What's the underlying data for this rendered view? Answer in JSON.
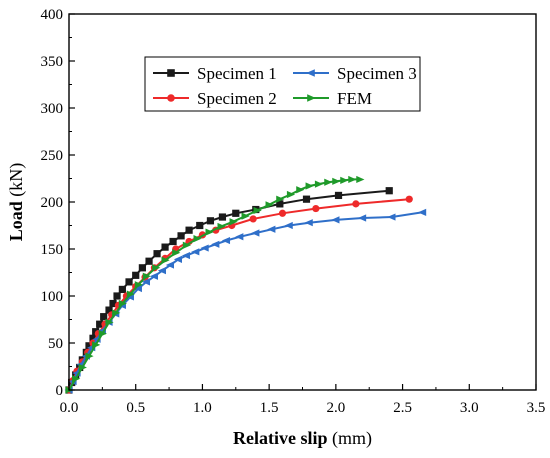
{
  "chart_data": {
    "type": "line",
    "xlabel_bold": "Relative slip",
    "xlabel_unit": " (mm)",
    "ylabel_bold": "Load",
    "ylabel_unit": " (kN)",
    "xlim": [
      0,
      3.5
    ],
    "ylim": [
      0,
      400
    ],
    "xticks": [
      "0.0",
      "0.5",
      "1.0",
      "1.5",
      "2.0",
      "2.5",
      "3.0",
      "3.5"
    ],
    "yticks": [
      "0",
      "50",
      "100",
      "150",
      "200",
      "250",
      "300",
      "350",
      "400"
    ],
    "grid": false,
    "legend_position": "top-center",
    "series": [
      {
        "name": "Specimen 1",
        "color": "#1a1a1a",
        "marker": "square",
        "points": [
          [
            0.0,
            0
          ],
          [
            0.02,
            8
          ],
          [
            0.05,
            16
          ],
          [
            0.08,
            24
          ],
          [
            0.1,
            32
          ],
          [
            0.13,
            40
          ],
          [
            0.15,
            47
          ],
          [
            0.18,
            55
          ],
          [
            0.2,
            62
          ],
          [
            0.23,
            70
          ],
          [
            0.26,
            78
          ],
          [
            0.3,
            85
          ],
          [
            0.33,
            92
          ],
          [
            0.36,
            100
          ],
          [
            0.4,
            107
          ],
          [
            0.45,
            115
          ],
          [
            0.5,
            122
          ],
          [
            0.55,
            130
          ],
          [
            0.6,
            137
          ],
          [
            0.66,
            145
          ],
          [
            0.72,
            152
          ],
          [
            0.78,
            158
          ],
          [
            0.84,
            164
          ],
          [
            0.9,
            170
          ],
          [
            0.98,
            175
          ],
          [
            1.06,
            180
          ],
          [
            1.15,
            184
          ],
          [
            1.25,
            188
          ],
          [
            1.4,
            192
          ],
          [
            1.58,
            198
          ],
          [
            1.78,
            203
          ],
          [
            2.02,
            207
          ],
          [
            2.4,
            212
          ]
        ]
      },
      {
        "name": "Specimen 2",
        "color": "#ee2a2a",
        "marker": "circle",
        "points": [
          [
            0.0,
            0
          ],
          [
            0.03,
            10
          ],
          [
            0.06,
            20
          ],
          [
            0.1,
            30
          ],
          [
            0.14,
            40
          ],
          [
            0.18,
            50
          ],
          [
            0.22,
            60
          ],
          [
            0.27,
            70
          ],
          [
            0.32,
            80
          ],
          [
            0.37,
            90
          ],
          [
            0.43,
            100
          ],
          [
            0.5,
            110
          ],
          [
            0.57,
            120
          ],
          [
            0.64,
            130
          ],
          [
            0.72,
            140
          ],
          [
            0.8,
            150
          ],
          [
            0.9,
            158
          ],
          [
            1.0,
            165
          ],
          [
            1.1,
            170
          ],
          [
            1.22,
            175
          ],
          [
            1.38,
            182
          ],
          [
            1.6,
            188
          ],
          [
            1.85,
            193
          ],
          [
            2.15,
            198
          ],
          [
            2.55,
            203
          ]
        ]
      },
      {
        "name": "Specimen 3",
        "color": "#2f6fc9",
        "marker": "triangle-left",
        "points": [
          [
            0.0,
            0
          ],
          [
            0.03,
            9
          ],
          [
            0.06,
            18
          ],
          [
            0.09,
            27
          ],
          [
            0.13,
            36
          ],
          [
            0.17,
            45
          ],
          [
            0.21,
            54
          ],
          [
            0.25,
            63
          ],
          [
            0.3,
            72
          ],
          [
            0.35,
            81
          ],
          [
            0.4,
            90
          ],
          [
            0.46,
            99
          ],
          [
            0.52,
            108
          ],
          [
            0.58,
            115
          ],
          [
            0.64,
            121
          ],
          [
            0.7,
            127
          ],
          [
            0.76,
            133
          ],
          [
            0.82,
            139
          ],
          [
            0.88,
            143
          ],
          [
            0.95,
            147
          ],
          [
            1.02,
            151
          ],
          [
            1.1,
            155
          ],
          [
            1.18,
            159
          ],
          [
            1.28,
            163
          ],
          [
            1.4,
            167
          ],
          [
            1.52,
            171
          ],
          [
            1.65,
            175
          ],
          [
            1.8,
            178
          ],
          [
            2.0,
            181
          ],
          [
            2.2,
            183
          ],
          [
            2.42,
            184
          ],
          [
            2.65,
            189
          ]
        ]
      },
      {
        "name": "FEM",
        "color": "#1f9a2a",
        "marker": "triangle-right",
        "points": [
          [
            0.0,
            0
          ],
          [
            0.05,
            12
          ],
          [
            0.1,
            24
          ],
          [
            0.15,
            36
          ],
          [
            0.2,
            48
          ],
          [
            0.25,
            60
          ],
          [
            0.3,
            72
          ],
          [
            0.35,
            82
          ],
          [
            0.4,
            92
          ],
          [
            0.46,
            102
          ],
          [
            0.52,
            112
          ],
          [
            0.58,
            121
          ],
          [
            0.65,
            130
          ],
          [
            0.72,
            138
          ],
          [
            0.8,
            146
          ],
          [
            0.88,
            154
          ],
          [
            0.96,
            161
          ],
          [
            1.05,
            168
          ],
          [
            1.14,
            174
          ],
          [
            1.23,
            179
          ],
          [
            1.32,
            185
          ],
          [
            1.41,
            191
          ],
          [
            1.5,
            197
          ],
          [
            1.58,
            203
          ],
          [
            1.66,
            208
          ],
          [
            1.73,
            213
          ],
          [
            1.8,
            217
          ],
          [
            1.87,
            219
          ],
          [
            1.94,
            221
          ],
          [
            2.0,
            222
          ],
          [
            2.06,
            223
          ],
          [
            2.12,
            224
          ],
          [
            2.18,
            224
          ]
        ]
      }
    ]
  }
}
